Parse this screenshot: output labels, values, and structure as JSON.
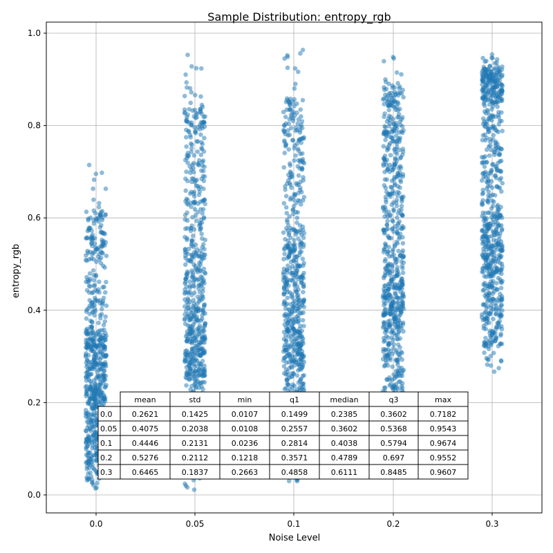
{
  "chart_data": {
    "type": "scatter",
    "title": "Sample Distribution: entropy_rgb",
    "xlabel": "Noise Level",
    "ylabel": "entropy_rgb",
    "categories": [
      "0.0",
      "0.05",
      "0.1",
      "0.2",
      "0.3"
    ],
    "yticks": [
      "0.0",
      "0.2",
      "0.4",
      "0.6",
      "0.8",
      "1.0"
    ],
    "ylim": [
      -0.04,
      1.02
    ],
    "grid": true,
    "marker_color": "#1f77b4",
    "series": [
      {
        "x": "0.0",
        "min": 0.0107,
        "q1": 0.1499,
        "median": 0.2385,
        "q3": 0.3602,
        "max": 0.7182
      },
      {
        "x": "0.05",
        "min": 0.0108,
        "q1": 0.2557,
        "median": 0.3602,
        "q3": 0.5368,
        "max": 0.9543
      },
      {
        "x": "0.1",
        "min": 0.0236,
        "q1": 0.2814,
        "median": 0.4038,
        "q3": 0.5794,
        "max": 0.9674
      },
      {
        "x": "0.2",
        "min": 0.1218,
        "q1": 0.3571,
        "median": 0.4789,
        "q3": 0.697,
        "max": 0.9552
      },
      {
        "x": "0.3",
        "min": 0.2663,
        "q1": 0.4858,
        "median": 0.6111,
        "q3": 0.8485,
        "max": 0.9607
      }
    ],
    "table": {
      "columns": [
        "mean",
        "std",
        "min",
        "q1",
        "median",
        "q3",
        "max"
      ],
      "rows": [
        {
          "label": "0.0",
          "values": [
            "0.2621",
            "0.1425",
            "0.0107",
            "0.1499",
            "0.2385",
            "0.3602",
            "0.7182"
          ]
        },
        {
          "label": "0.05",
          "values": [
            "0.4075",
            "0.2038",
            "0.0108",
            "0.2557",
            "0.3602",
            "0.5368",
            "0.9543"
          ]
        },
        {
          "label": "0.1",
          "values": [
            "0.4446",
            "0.2131",
            "0.0236",
            "0.2814",
            "0.4038",
            "0.5794",
            "0.9674"
          ]
        },
        {
          "label": "0.2",
          "values": [
            "0.5276",
            "0.2112",
            "0.1218",
            "0.3571",
            "0.4789",
            "0.697",
            "0.9552"
          ]
        },
        {
          "label": "0.3",
          "values": [
            "0.6465",
            "0.1837",
            "0.2663",
            "0.4858",
            "0.6111",
            "0.8485",
            "0.9607"
          ]
        }
      ]
    }
  }
}
